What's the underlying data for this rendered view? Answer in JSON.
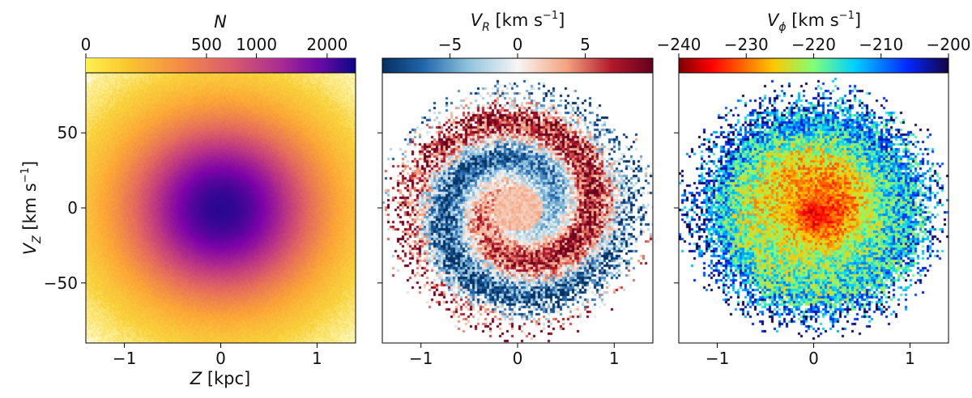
{
  "chart_data": [
    {
      "type": "heatmap",
      "name": "density",
      "colormap": "plasma_r",
      "colorbar": {
        "title": "N",
        "scale": "sqrt",
        "range": [
          0,
          2500
        ],
        "ticks": [
          0,
          500,
          1000,
          2000
        ],
        "tick_labels": [
          "0",
          "500",
          "1000",
          "2000"
        ]
      },
      "xlabel": "Z [kpc]",
      "ylabel": "V_Z [km s^-1]",
      "xlim": [
        -1.4,
        1.4
      ],
      "ylim": [
        -90,
        90
      ],
      "x_ticks": [
        -1,
        0,
        1
      ],
      "x_tick_labels": [
        "−1",
        "0",
        "1"
      ],
      "y_ticks": [
        -50,
        0,
        50
      ],
      "y_tick_labels": [
        "−50",
        "0",
        "50"
      ],
      "peak_value": 2500,
      "center": [
        0,
        0
      ]
    },
    {
      "type": "heatmap",
      "name": "radial-velocity",
      "colormap": "RdBu_r",
      "colorbar": {
        "title": "V_R [km s^-1]",
        "range": [
          -10,
          10
        ],
        "ticks": [
          -5,
          0,
          5
        ],
        "tick_labels": [
          "−5",
          "0",
          "5"
        ]
      },
      "xlabel": "",
      "xlim": [
        -1.4,
        1.4
      ],
      "ylim": [
        -90,
        90
      ],
      "x_ticks": [
        -1,
        0,
        1
      ],
      "x_tick_labels": [
        "−1",
        "0",
        "1"
      ],
      "y_ticks": [
        -50,
        0,
        50
      ],
      "pattern": "phase-space spiral"
    },
    {
      "type": "heatmap",
      "name": "azimuthal-velocity",
      "colormap": "jet_r",
      "colorbar": {
        "title": "V_phi [km s^-1]",
        "range": [
          -240,
          -200
        ],
        "ticks": [
          -240,
          -230,
          -220,
          -210,
          -200
        ],
        "tick_labels": [
          "−240",
          "−230",
          "−220",
          "−210",
          "−200"
        ]
      },
      "xlabel": "",
      "xlim": [
        -1.4,
        1.4
      ],
      "ylim": [
        -90,
        90
      ],
      "x_ticks": [
        -1,
        0,
        1
      ],
      "x_tick_labels": [
        "−1",
        "0",
        "1"
      ],
      "y_ticks": [
        -50,
        0,
        50
      ],
      "pattern": "phase-space spiral"
    }
  ],
  "labels": {
    "x_axis": "Z [kpc]",
    "y_axis_main": "V",
    "y_axis_sub": "Z",
    "y_axis_unit": " [km s",
    "y_axis_exp": "−1",
    "y_axis_close": "]",
    "cb1_title": "N",
    "cb2_main": "V",
    "cb2_sub": "R",
    "cb2_unit": " [km s",
    "cb2_exp": "−1",
    "cb2_close": "]",
    "cb3_main": "V",
    "cb3_sub": "ϕ",
    "cb3_unit": " [km s",
    "cb3_exp": "−1",
    "cb3_close": "]"
  }
}
